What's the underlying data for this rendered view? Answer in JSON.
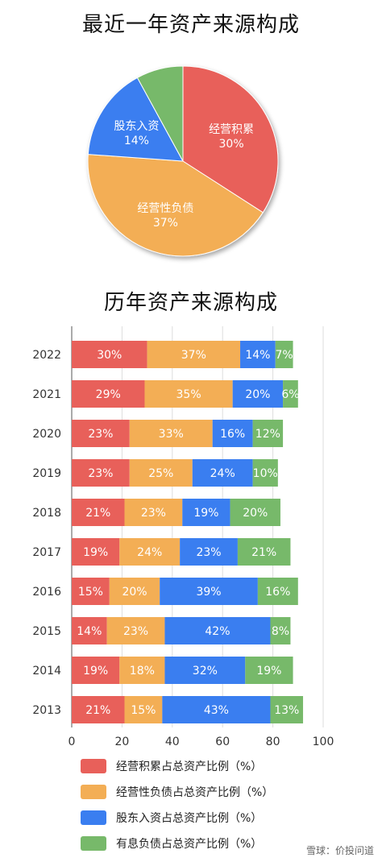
{
  "watermark": "雪球：价投问道",
  "chart_data": [
    {
      "type": "pie",
      "title": "最近一年资产来源构成",
      "slices": [
        {
          "label": "经营积累",
          "value": 30,
          "display": "30%",
          "color": "#e8605a"
        },
        {
          "label": "经营性负债",
          "value": 37,
          "display": "37%",
          "color": "#f3ae55"
        },
        {
          "label": "股东入资",
          "value": 14,
          "display": "14%",
          "color": "#3a7ef0"
        },
        {
          "label": "",
          "value": 7,
          "display": "",
          "color": "#77b96a"
        }
      ]
    },
    {
      "type": "bar",
      "orientation": "horizontal",
      "stacked": true,
      "title": "历年资产来源构成",
      "categories": [
        "2022",
        "2021",
        "2020",
        "2019",
        "2018",
        "2017",
        "2016",
        "2015",
        "2014",
        "2013"
      ],
      "xlim": [
        0,
        100
      ],
      "xticks": [
        "0",
        "20",
        "40",
        "60",
        "80",
        "100"
      ],
      "grid": true,
      "legend_position": "bottom",
      "series": [
        {
          "name": "经营积累占总资产比例（%）",
          "color": "#e8605a",
          "values": [
            30,
            29,
            23,
            23,
            21,
            19,
            15,
            14,
            19,
            21
          ]
        },
        {
          "name": "经营性负债占总资产比例（%）",
          "color": "#f3ae55",
          "values": [
            37,
            35,
            33,
            25,
            23,
            24,
            20,
            23,
            18,
            15
          ]
        },
        {
          "name": "股东入资占总资产比例（%）",
          "color": "#3a7ef0",
          "values": [
            14,
            20,
            16,
            24,
            19,
            23,
            39,
            42,
            32,
            43
          ]
        },
        {
          "name": "有息负债占总资产比例（%）",
          "color": "#77b96a",
          "values": [
            7,
            6,
            12,
            10,
            20,
            21,
            16,
            8,
            19,
            13
          ]
        }
      ]
    }
  ]
}
